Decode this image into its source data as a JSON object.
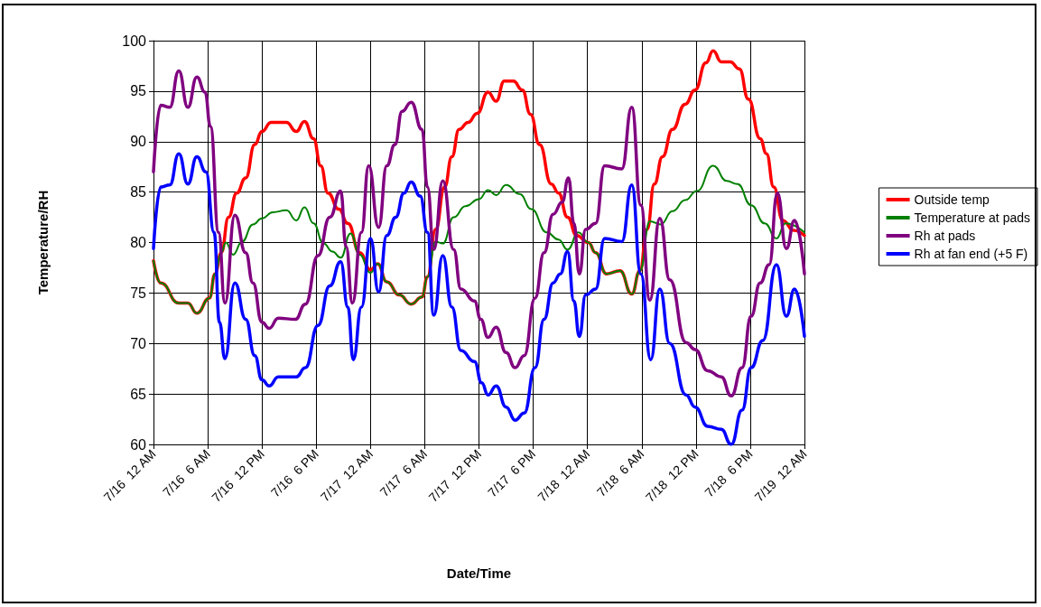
{
  "chart_data": {
    "type": "line",
    "xlabel": "Date/Time",
    "ylabel": "Temperature/RH",
    "xlim": [
      "--07-16T00:00",
      "--07-19T00:00"
    ],
    "ylim": [
      60,
      100
    ],
    "yticks": [
      60,
      65,
      70,
      75,
      80,
      85,
      90,
      95,
      100
    ],
    "xticks": [
      {
        "value": "--07-16T00:00",
        "label": "7/16  12 AM"
      },
      {
        "value": "--07-16T06:00",
        "label": "7/16  6 AM"
      },
      {
        "value": "--07-16T12:00",
        "label": "7/16  12 PM"
      },
      {
        "value": "--07-16T18:00",
        "label": "7/16  6 PM"
      },
      {
        "value": "--07-17T00:00",
        "label": "7/17  12 AM"
      },
      {
        "value": "--07-17T06:00",
        "label": "7/17  6 AM"
      },
      {
        "value": "--07-17T12:00",
        "label": "7/17  12 PM"
      },
      {
        "value": "--07-17T18:00",
        "label": "7/17  6 PM"
      },
      {
        "value": "--07-18T00:00",
        "label": "7/18  12 AM"
      },
      {
        "value": "--07-18T06:00",
        "label": "7/18  6 AM"
      },
      {
        "value": "--07-18T12:00",
        "label": "7/18  12 PM"
      },
      {
        "value": "--07-18T18:00",
        "label": "7/18  6 PM"
      },
      {
        "value": "--07-19T00:00",
        "label": "7/19  12 AM"
      }
    ],
    "grid": true,
    "legend": "right",
    "marker": "none",
    "line_style": "solid",
    "series": [
      {
        "name": "Outside temp",
        "color": "#ff0000",
        "x": [
          "--07-16T00:00",
          "--07-16T00:48",
          "--07-16T02:48",
          "--07-16T03:48",
          "--07-16T04:48",
          "--07-16T06:12",
          "--07-16T06:48",
          "--07-16T07:30",
          "--07-16T08:18",
          "--07-16T09:12",
          "--07-16T10:12",
          "--07-16T11:12",
          "--07-16T12:00",
          "--07-16T13:00",
          "--07-16T14:42",
          "--07-16T15:48",
          "--07-16T16:42",
          "--07-16T17:42",
          "--07-16T18:30",
          "--07-16T19:18",
          "--07-16T20:30",
          "--07-16T21:30",
          "--07-16T22:48",
          "--07-17T00:00",
          "--07-17T00:48",
          "--07-17T01:48",
          "--07-17T03:12",
          "--07-17T04:30",
          "--07-17T05:42",
          "--07-17T06:18",
          "--07-17T07:12",
          "--07-17T08:12",
          "--07-17T09:00",
          "--07-17T09:48",
          "--07-17T10:48",
          "--07-17T11:48",
          "--07-17T13:00",
          "--07-17T13:54",
          "--07-17T14:48",
          "--07-17T15:48",
          "--07-17T16:48",
          "--07-17T17:42",
          "--07-17T18:42",
          "--07-17T20:00",
          "--07-17T20:48",
          "--07-17T21:48",
          "--07-17T22:48",
          "--07-18T00:06",
          "--07-18T00:54",
          "--07-18T02:06",
          "--07-18T03:36",
          "--07-18T04:54",
          "--07-18T05:48",
          "--07-18T06:36",
          "--07-18T07:24",
          "--07-18T08:18",
          "--07-18T09:24",
          "--07-18T10:48",
          "--07-18T11:54",
          "--07-18T13:06",
          "--07-18T13:54",
          "--07-18T14:48",
          "--07-18T15:48",
          "--07-18T16:48",
          "--07-18T17:48",
          "--07-18T19:06",
          "--07-18T19:48",
          "--07-18T20:36",
          "--07-18T21:36",
          "--07-18T22:48",
          "--07-19T00:00"
        ],
        "values": [
          78.2,
          76,
          74,
          74,
          73,
          74.5,
          76.9,
          79,
          82.5,
          84.9,
          86.4,
          89.7,
          91,
          91.9,
          91.9,
          91,
          92,
          90.3,
          87.6,
          84.9,
          83.3,
          81.9,
          79,
          77.3,
          77.9,
          76.1,
          74.8,
          73.9,
          74.6,
          76.6,
          81.3,
          85.5,
          88.5,
          91.2,
          91.9,
          92.8,
          94.9,
          94,
          96,
          96,
          95.1,
          92.7,
          89.7,
          85.8,
          84.9,
          82.5,
          80.7,
          80,
          79,
          76.9,
          77.2,
          74.9,
          77.2,
          81.3,
          85.8,
          88.5,
          91.2,
          93.7,
          95.1,
          97.8,
          99,
          97.9,
          97.9,
          97.2,
          94.2,
          90.3,
          88.8,
          85.5,
          82.2,
          81.2,
          80.7
        ]
      },
      {
        "name": "Temperature at pads",
        "color": "#008000",
        "x": [
          "--07-16T00:00",
          "--07-16T00:48",
          "--07-16T02:48",
          "--07-16T03:48",
          "--07-16T04:48",
          "--07-16T06:12",
          "--07-16T06:48",
          "--07-16T07:30",
          "--07-16T08:00",
          "--07-16T08:48",
          "--07-16T09:48",
          "--07-16T11:00",
          "--07-16T12:00",
          "--07-16T13:12",
          "--07-16T14:42",
          "--07-16T15:48",
          "--07-16T16:42",
          "--07-16T17:42",
          "--07-16T18:48",
          "--07-16T19:48",
          "--07-16T20:42",
          "--07-16T21:48",
          "--07-16T22:48",
          "--07-17T00:00",
          "--07-17T00:48",
          "--07-17T01:48",
          "--07-17T03:12",
          "--07-17T04:30",
          "--07-17T05:42",
          "--07-17T06:18",
          "--07-17T07:12",
          "--07-17T08:00",
          "--07-17T09:12",
          "--07-17T10:30",
          "--07-17T12:00",
          "--07-17T13:00",
          "--07-17T13:54",
          "--07-17T15:00",
          "--07-17T16:30",
          "--07-17T17:48",
          "--07-17T19:30",
          "--07-17T20:48",
          "--07-17T21:48",
          "--07-17T23:00",
          "--07-18T00:06",
          "--07-18T00:54",
          "--07-18T02:06",
          "--07-18T03:36",
          "--07-18T04:54",
          "--07-18T05:48",
          "--07-18T06:54",
          "--07-18T08:06",
          "--07-18T09:24",
          "--07-18T10:48",
          "--07-18T12:06",
          "--07-18T13:54",
          "--07-18T15:24",
          "--07-18T16:36",
          "--07-18T18:06",
          "--07-18T19:36",
          "--07-18T20:54",
          "--07-18T21:54",
          "--07-19T00:00"
        ],
        "values": [
          78.2,
          76,
          74,
          74,
          73,
          74.5,
          76.9,
          79,
          80,
          78.8,
          80.1,
          81.8,
          82.4,
          83,
          83.2,
          82.2,
          83.5,
          81.9,
          79.9,
          79.1,
          78.5,
          80.9,
          78.8,
          77,
          77.9,
          76.1,
          74.8,
          73.9,
          74.6,
          76.6,
          80.1,
          79.9,
          82.5,
          83.6,
          84.3,
          85.2,
          84.7,
          85.7,
          84.8,
          83.3,
          81,
          80.3,
          79.3,
          81,
          80,
          79,
          76.9,
          77.2,
          74.9,
          77.2,
          82.1,
          81.8,
          83.1,
          84.2,
          85.1,
          87.6,
          86.1,
          85.8,
          83.7,
          81.9,
          80.4,
          81.9,
          81
        ]
      },
      {
        "name": "Rh at pads",
        "color": "#800080",
        "x": [
          "--07-16T00:00",
          "--07-16T00:48",
          "--07-16T01:48",
          "--07-16T02:48",
          "--07-16T03:48",
          "--07-16T04:48",
          "--07-16T05:42",
          "--07-16T06:18",
          "--07-16T07:12",
          "--07-16T07:54",
          "--07-16T09:00",
          "--07-16T10:12",
          "--07-16T11:00",
          "--07-16T12:00",
          "--07-16T12:48",
          "--07-16T13:48",
          "--07-16T15:42",
          "--07-16T16:48",
          "--07-16T18:12",
          "--07-16T19:30",
          "--07-16T20:42",
          "--07-16T21:18",
          "--07-16T22:00",
          "--07-16T23:00",
          "--07-16T23:48",
          "--07-17T00:54",
          "--07-17T01:48",
          "--07-17T02:42",
          "--07-17T03:30",
          "--07-17T04:30",
          "--07-17T05:42",
          "--07-17T06:18",
          "--07-17T07:00",
          "--07-17T08:00",
          "--07-17T09:12",
          "--07-17T10:00",
          "--07-17T11:30",
          "--07-17T12:12",
          "--07-17T13:00",
          "--07-17T13:54",
          "--07-17T15:00",
          "--07-17T16:00",
          "--07-17T17:00",
          "--07-17T18:12",
          "--07-17T19:12",
          "--07-17T20:12",
          "--07-17T21:12",
          "--07-17T21:54",
          "--07-17T22:30",
          "--07-17T23:06",
          "--07-17T23:48",
          "--07-18T00:54",
          "--07-18T01:54",
          "--07-18T03:48",
          "--07-18T04:54",
          "--07-18T05:54",
          "--07-18T06:54",
          "--07-18T08:00",
          "--07-18T09:06",
          "--07-18T10:54",
          "--07-18T11:54",
          "--07-18T13:18",
          "--07-18T14:48",
          "--07-18T15:54",
          "--07-18T17:06",
          "--07-18T18:06",
          "--07-18T19:06",
          "--07-18T20:06",
          "--07-18T21:00",
          "--07-18T22:00",
          "--07-18T22:54",
          "--07-19T00:00"
        ],
        "values": [
          87,
          93.6,
          93.4,
          97,
          93.4,
          96.4,
          94.9,
          91.5,
          81,
          74,
          82.7,
          79,
          76,
          72.1,
          71.5,
          72.5,
          72.4,
          73.9,
          78.7,
          82.5,
          85.1,
          79.6,
          74,
          81,
          87.6,
          81.5,
          87.6,
          89.7,
          93,
          93.9,
          91.2,
          85.5,
          79.3,
          86.1,
          79.3,
          75.4,
          74.2,
          72.4,
          70.6,
          71.6,
          69.1,
          67.6,
          68.8,
          74.5,
          79,
          82.8,
          84,
          86.4,
          81.9,
          76.9,
          81.3,
          81.9,
          87.6,
          87.3,
          93.4,
          83.7,
          74.3,
          82.4,
          76.3,
          70.1,
          69.4,
          67.3,
          66.7,
          64.8,
          67.6,
          72.7,
          76,
          77.8,
          84.9,
          79.4,
          82.2,
          76.9
        ]
      },
      {
        "name": "Rh at fan end (+5 F)",
        "color": "#0000ff",
        "x": [
          "--07-16T00:00",
          "--07-16T00:48",
          "--07-16T01:48",
          "--07-16T02:48",
          "--07-16T03:48",
          "--07-16T04:48",
          "--07-16T05:48",
          "--07-16T06:42",
          "--07-16T07:18",
          "--07-16T07:54",
          "--07-16T09:00",
          "--07-16T10:12",
          "--07-16T11:12",
          "--07-16T12:00",
          "--07-16T12:48",
          "--07-16T13:48",
          "--07-16T15:48",
          "--07-16T16:48",
          "--07-16T18:12",
          "--07-16T19:30",
          "--07-16T20:42",
          "--07-16T21:30",
          "--07-16T22:06",
          "--07-16T23:00",
          "--07-17T00:00",
          "--07-17T00:54",
          "--07-17T01:48",
          "--07-17T02:48",
          "--07-17T03:42",
          "--07-17T04:30",
          "--07-17T05:30",
          "--07-17T06:18",
          "--07-17T07:00",
          "--07-17T08:00",
          "--07-17T09:00",
          "--07-17T10:00",
          "--07-17T11:30",
          "--07-17T12:18",
          "--07-17T13:00",
          "--07-17T13:54",
          "--07-17T15:00",
          "--07-17T16:00",
          "--07-17T17:00",
          "--07-17T18:12",
          "--07-17T19:12",
          "--07-17T20:12",
          "--07-17T21:00",
          "--07-17T21:48",
          "--07-17T22:30",
          "--07-17T23:06",
          "--07-17T23:48",
          "--07-18T00:54",
          "--07-18T01:54",
          "--07-18T03:48",
          "--07-18T04:54",
          "--07-18T05:54",
          "--07-18T07:00",
          "--07-18T08:00",
          "--07-18T09:06",
          "--07-18T10:54",
          "--07-18T11:54",
          "--07-18T13:18",
          "--07-18T14:48",
          "--07-18T15:54",
          "--07-18T17:06",
          "--07-18T18:06",
          "--07-18T19:24",
          "--07-18T20:54",
          "--07-18T22:00",
          "--07-18T22:54",
          "--07-19T00:00"
        ],
        "values": [
          79.4,
          85.5,
          85.7,
          88.8,
          85.8,
          88.5,
          87,
          81,
          72.1,
          68.5,
          76,
          72.4,
          68.8,
          66.4,
          65.8,
          66.7,
          66.7,
          67.6,
          71.8,
          75.7,
          78.1,
          73.6,
          68.4,
          73.6,
          80.4,
          75.1,
          80.7,
          82.5,
          84.9,
          86,
          84.6,
          81,
          72.8,
          78.7,
          73.6,
          69.3,
          68.2,
          66.1,
          64.9,
          65.8,
          63.7,
          62.4,
          63.1,
          67.6,
          72.4,
          76,
          76.9,
          79.1,
          74.2,
          70.7,
          74.8,
          75.4,
          80.4,
          80.1,
          85.7,
          76.9,
          68.4,
          75.4,
          70,
          64.9,
          63.7,
          61.8,
          61.5,
          60,
          63.4,
          67.6,
          70.3,
          77.8,
          72.7,
          75.4,
          70.7
        ]
      }
    ]
  }
}
